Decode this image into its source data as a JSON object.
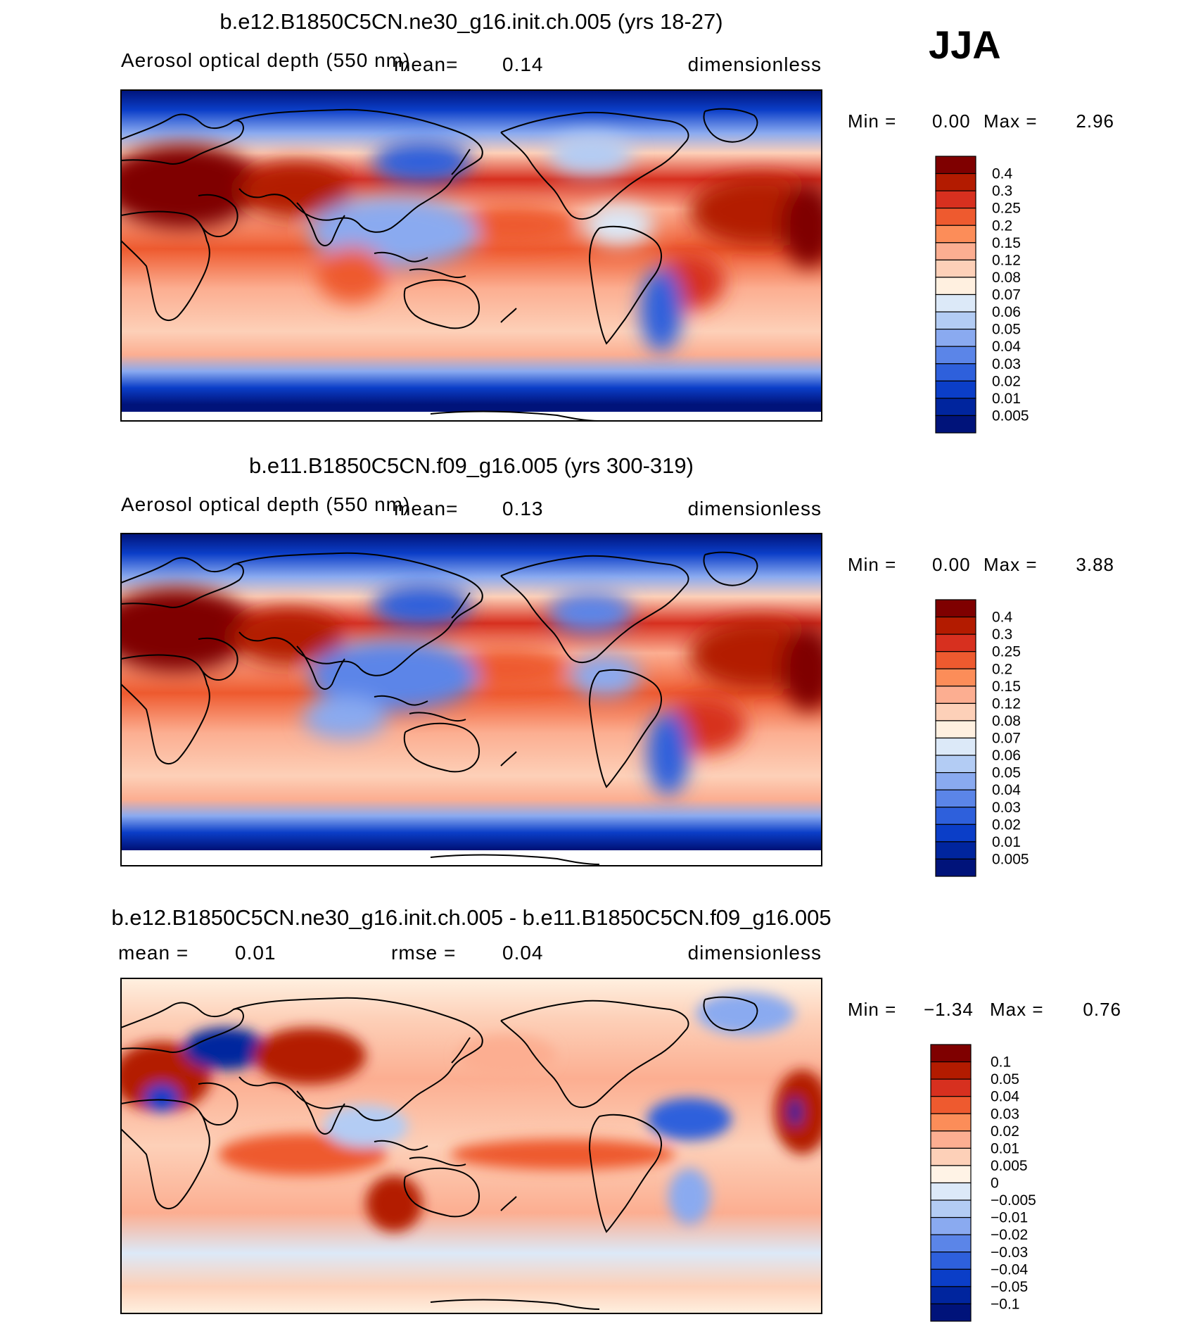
{
  "season": "JJA",
  "chart_data": [
    {
      "type": "heatmap",
      "title": "b.e12.B1850C5CN.ne30_g16.init.ch.005 (yrs 18-27)",
      "variable": "Aerosol optical depth (550 nm)",
      "mean_label": "mean=",
      "mean": "0.14",
      "units": "dimensionless",
      "min_label": "Min =",
      "min": "0.00",
      "max_label": "Max =",
      "max": "2.96",
      "colorbar_labels": [
        "0.4",
        "0.3",
        "0.25",
        "0.2",
        "0.15",
        "0.12",
        "0.08",
        "0.07",
        "0.06",
        "0.05",
        "0.04",
        "0.03",
        "0.02",
        "0.01",
        "0.005"
      ],
      "colorbar_colors": [
        "#7f0000",
        "#b31b00",
        "#d7301f",
        "#ee5a2f",
        "#fc8d59",
        "#fcae91",
        "#fdd0b8",
        "#fff0e0",
        "#dce9f8",
        "#b3ccf4",
        "#8aaaf0",
        "#5b85e8",
        "#2e60dc",
        "#0b3ec8",
        "#00259e",
        "#00137a"
      ]
    },
    {
      "type": "heatmap",
      "title": "b.e11.B1850C5CN.f09_g16.005 (yrs 300-319)",
      "variable": "Aerosol optical depth (550 nm)",
      "mean_label": "mean=",
      "mean": "0.13",
      "units": "dimensionless",
      "min_label": "Min =",
      "min": "0.00",
      "max_label": "Max =",
      "max": "3.88",
      "colorbar_labels": [
        "0.4",
        "0.3",
        "0.25",
        "0.2",
        "0.15",
        "0.12",
        "0.08",
        "0.07",
        "0.06",
        "0.05",
        "0.04",
        "0.03",
        "0.02",
        "0.01",
        "0.005"
      ],
      "colorbar_colors": [
        "#7f0000",
        "#b31b00",
        "#d7301f",
        "#ee5a2f",
        "#fc8d59",
        "#fcae91",
        "#fdd0b8",
        "#fff0e0",
        "#dce9f8",
        "#b3ccf4",
        "#8aaaf0",
        "#5b85e8",
        "#2e60dc",
        "#0b3ec8",
        "#00259e",
        "#00137a"
      ]
    },
    {
      "type": "heatmap",
      "title": "b.e12.B1850C5CN.ne30_g16.init.ch.005 - b.e11.B1850C5CN.f09_g16.005",
      "mean_label": "mean =",
      "mean": "0.01",
      "rmse_label": "rmse =",
      "rmse": "0.04",
      "units": "dimensionless",
      "min_label": "Min =",
      "min": "−1.34",
      "max_label": "Max =",
      "max": "0.76",
      "colorbar_labels": [
        "0.1",
        "0.05",
        "0.04",
        "0.03",
        "0.02",
        "0.01",
        "0.005",
        "0",
        "−0.005",
        "−0.01",
        "−0.02",
        "−0.03",
        "−0.04",
        "−0.05",
        "−0.1"
      ],
      "colorbar_colors": [
        "#7f0000",
        "#b31b00",
        "#d7301f",
        "#ee5a2f",
        "#fc8d59",
        "#fcae91",
        "#fdd0b8",
        "#fff3e6",
        "#dce9f8",
        "#b3ccf4",
        "#8aaaf0",
        "#5b85e8",
        "#2e60dc",
        "#0b3ec8",
        "#00259e",
        "#00137a"
      ]
    }
  ]
}
